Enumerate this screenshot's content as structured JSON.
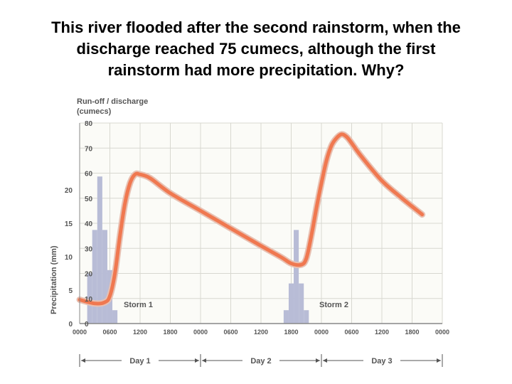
{
  "slide": {
    "title_lines": [
      "This river flooded after the second rainstorm, when the",
      "discharge reached 75 cumecs, although the first",
      "rainstorm had more precipitation. Why?"
    ]
  },
  "chart_data": {
    "type": "line",
    "title": "",
    "discharge_label_lines": [
      "Run-off / discharge",
      "(cumecs)"
    ],
    "precip_label": "Precipitation (mm)",
    "discharge_ylim": [
      0,
      80
    ],
    "discharge_ticks": [
      "0",
      "10",
      "20",
      "30",
      "40",
      "50",
      "60",
      "70",
      "80"
    ],
    "precip_ylim": [
      0,
      30
    ],
    "precip_ticks": [
      "0",
      "5",
      "10",
      "15",
      "20"
    ],
    "xlim_hours": [
      0,
      72
    ],
    "time_tick_labels": [
      "0000",
      "0600",
      "1200",
      "1800",
      "0000",
      "0600",
      "1200",
      "1800",
      "0000",
      "0600",
      "1200",
      "1800",
      "0000"
    ],
    "days": [
      "Day 1",
      "Day 2",
      "Day 3"
    ],
    "grid": true,
    "series": [
      {
        "kind": "line",
        "color": "#f07850",
        "points": [
          [
            0,
            9.5
          ],
          [
            3,
            8.0
          ],
          [
            5,
            8.5
          ],
          [
            6,
            11
          ],
          [
            7,
            20
          ],
          [
            8,
            35
          ],
          [
            9,
            48
          ],
          [
            10,
            56
          ],
          [
            11,
            59.5
          ],
          [
            12,
            59.5
          ],
          [
            14,
            58
          ],
          [
            18,
            52
          ],
          [
            24,
            45
          ],
          [
            30,
            38
          ],
          [
            36,
            31
          ],
          [
            40,
            26.5
          ],
          [
            42,
            24
          ],
          [
            44,
            23.5
          ],
          [
            45,
            26
          ],
          [
            46,
            35
          ],
          [
            47,
            46
          ],
          [
            48,
            56
          ],
          [
            49,
            65
          ],
          [
            50,
            71
          ],
          [
            51,
            74
          ],
          [
            52,
            75.5
          ],
          [
            53,
            74.5
          ],
          [
            54,
            72
          ],
          [
            56,
            66.5
          ],
          [
            60,
            57
          ],
          [
            64,
            50
          ],
          [
            68,
            43.5
          ]
        ]
      },
      {
        "kind": "bars",
        "color": "#b8bcd6",
        "storm_label": "Storm 1",
        "bars": [
          {
            "hour": 2,
            "mm": 7.5
          },
          {
            "hour": 3,
            "mm": 14
          },
          {
            "hour": 4,
            "mm": 22
          },
          {
            "hour": 5,
            "mm": 14
          },
          {
            "hour": 6,
            "mm": 8
          },
          {
            "hour": 7,
            "mm": 2
          }
        ]
      },
      {
        "kind": "bars",
        "color": "#b8bcd6",
        "storm_label": "Storm 2",
        "bars": [
          {
            "hour": 41,
            "mm": 2
          },
          {
            "hour": 42,
            "mm": 6
          },
          {
            "hour": 43,
            "mm": 14
          },
          {
            "hour": 44,
            "mm": 6
          },
          {
            "hour": 45,
            "mm": 2
          }
        ]
      }
    ]
  }
}
